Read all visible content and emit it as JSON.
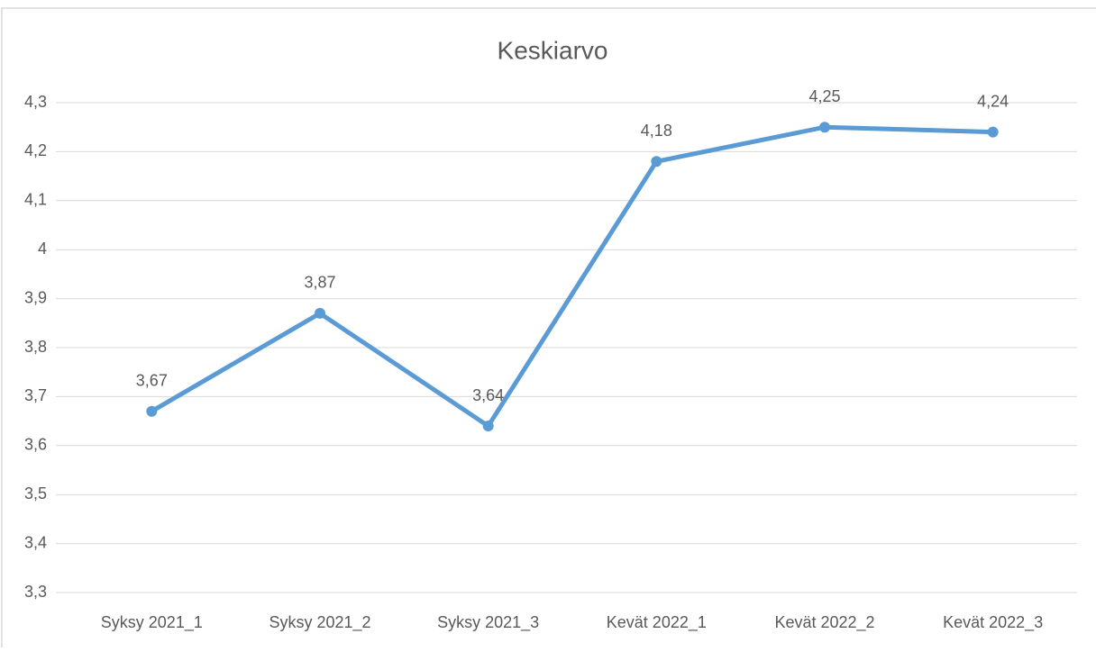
{
  "chart_data": {
    "type": "line",
    "title": "Keskiarvo",
    "categories": [
      "Syksy 2021_1",
      "Syksy 2021_2",
      "Syksy 2021_3",
      "Kevät 2022_1",
      "Kevät 2022_2",
      "Kevät 2022_3"
    ],
    "series": [
      {
        "name": "Keskiarvo",
        "color": "#5b9bd5",
        "values": [
          3.67,
          3.87,
          3.64,
          4.18,
          4.25,
          4.24
        ],
        "value_labels": [
          "3,67",
          "3,87",
          "3,64",
          "4,18",
          "4,25",
          "4,24"
        ]
      }
    ],
    "ylim": [
      3.3,
      4.3
    ],
    "yticks": [
      {
        "value": 3.3,
        "label": "3,3"
      },
      {
        "value": 3.4,
        "label": "3,4"
      },
      {
        "value": 3.5,
        "label": "3,5"
      },
      {
        "value": 3.6,
        "label": "3,6"
      },
      {
        "value": 3.7,
        "label": "3,7"
      },
      {
        "value": 3.8,
        "label": "3,8"
      },
      {
        "value": 3.9,
        "label": "3,9"
      },
      4,
      {
        "value": 4.1,
        "label": "4,1"
      },
      {
        "value": 4.2,
        "label": "4,2"
      },
      {
        "value": 4.3,
        "label": "4,3"
      }
    ],
    "grid": true
  }
}
